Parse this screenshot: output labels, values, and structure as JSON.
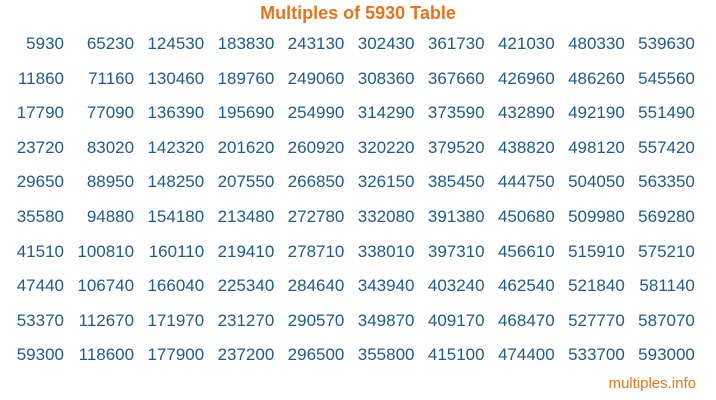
{
  "title": "Multiples of 5930 Table",
  "footer": "multiples.info",
  "colors": {
    "title": "#e8731a",
    "numbers": "#1f5a8c"
  },
  "chart_data": {
    "type": "table",
    "title": "Multiples of 5930 Table",
    "columns": [
      [
        "5930",
        "11860",
        "17790",
        "23720",
        "29650",
        "35580",
        "41510",
        "47440",
        "53370",
        "59300"
      ],
      [
        "65230",
        "71160",
        "77090",
        "83020",
        "88950",
        "94880",
        "100810",
        "106740",
        "112670",
        "118600"
      ],
      [
        "124530",
        "130460",
        "136390",
        "142320",
        "148250",
        "154180",
        "160110",
        "166040",
        "171970",
        "177900"
      ],
      [
        "183830",
        "189760",
        "195690",
        "201620",
        "207550",
        "213480",
        "219410",
        "225340",
        "231270",
        "237200"
      ],
      [
        "243130",
        "249060",
        "254990",
        "260920",
        "266850",
        "272780",
        "278710",
        "284640",
        "290570",
        "296500"
      ],
      [
        "302430",
        "308360",
        "314290",
        "320220",
        "326150",
        "332080",
        "338010",
        "343940",
        "349870",
        "355800"
      ],
      [
        "361730",
        "367660",
        "373590",
        "379520",
        "385450",
        "391380",
        "397310",
        "403240",
        "409170",
        "415100"
      ],
      [
        "421030",
        "426960",
        "432890",
        "438820",
        "444750",
        "450680",
        "456610",
        "462540",
        "468470",
        "474400"
      ],
      [
        "480330",
        "486260",
        "492190",
        "498120",
        "504050",
        "509980",
        "515910",
        "521840",
        "527770",
        "533700"
      ],
      [
        "539630",
        "545560",
        "551490",
        "557420",
        "563350",
        "569280",
        "575210",
        "581140",
        "587070",
        "593000"
      ]
    ]
  }
}
